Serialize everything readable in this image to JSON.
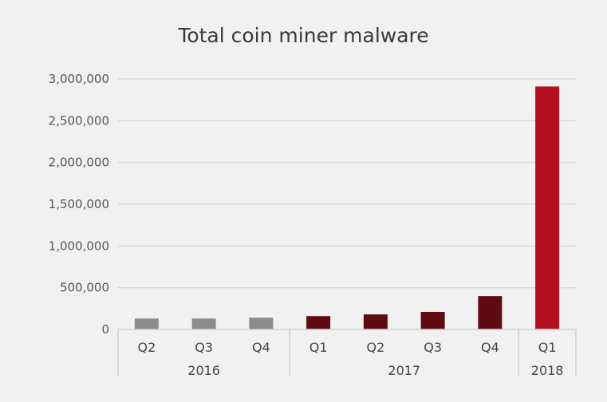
{
  "chart_data": {
    "type": "bar",
    "title": "Total coin miner malware",
    "xlabel": "",
    "ylabel": "",
    "ylim": [
      0,
      3000000
    ],
    "yticks": [
      0,
      500000,
      1000000,
      1500000,
      2000000,
      2500000,
      3000000
    ],
    "ytick_labels": [
      "0",
      "500,000",
      "1,000,000",
      "1,500,000",
      "2,000,000",
      "2,500,000",
      "3,000,000"
    ],
    "grid": true,
    "categories": [
      "Q2",
      "Q3",
      "Q4",
      "Q1",
      "Q2",
      "Q3",
      "Q4",
      "Q1"
    ],
    "groups": [
      {
        "label": "2016",
        "start": 0,
        "count": 3
      },
      {
        "label": "2017",
        "start": 3,
        "count": 4
      },
      {
        "label": "2018",
        "start": 7,
        "count": 1
      }
    ],
    "values": [
      130000,
      130000,
      140000,
      160000,
      180000,
      210000,
      400000,
      2910000
    ],
    "colors": [
      "#8b8b8d",
      "#8b8b8d",
      "#8b8b8d",
      "#5e0b13",
      "#5e0b13",
      "#5e0b13",
      "#5e0b13",
      "#b5101f"
    ]
  }
}
